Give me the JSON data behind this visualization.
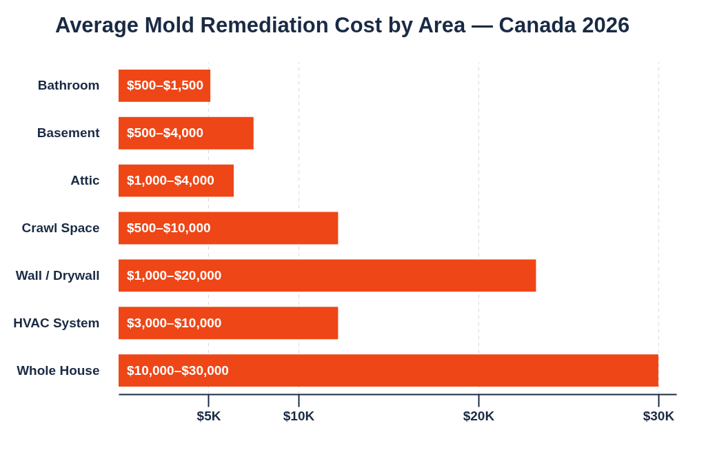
{
  "chart_data": {
    "type": "bar",
    "orientation": "horizontal",
    "title": "Average Mold Remediation Cost by Area — Canada 2026",
    "categories": [
      "Bathroom",
      "Basement",
      "Attic",
      "Crawl Space",
      "Wall / Drywall",
      "HVAC System",
      "Whole House"
    ],
    "values": [
      5.1,
      7.5,
      6.4,
      12.2,
      23.2,
      12.2,
      30
    ],
    "value_labels": [
      "$500–$1,500",
      "$500–$4,000",
      "$1,000–$4,000",
      "$500–$10,000",
      "$1,000–$20,000",
      "$3,000–$10,000",
      "$10,000–$30,000"
    ],
    "color": "#ee4616",
    "xlim": [
      0,
      31
    ],
    "xticks": [
      {
        "value": 5,
        "label": "$5K"
      },
      {
        "value": 10,
        "label": "$10K"
      },
      {
        "value": 20,
        "label": "$20K"
      },
      {
        "value": 30,
        "label": "$30K"
      }
    ],
    "grid": "x"
  }
}
